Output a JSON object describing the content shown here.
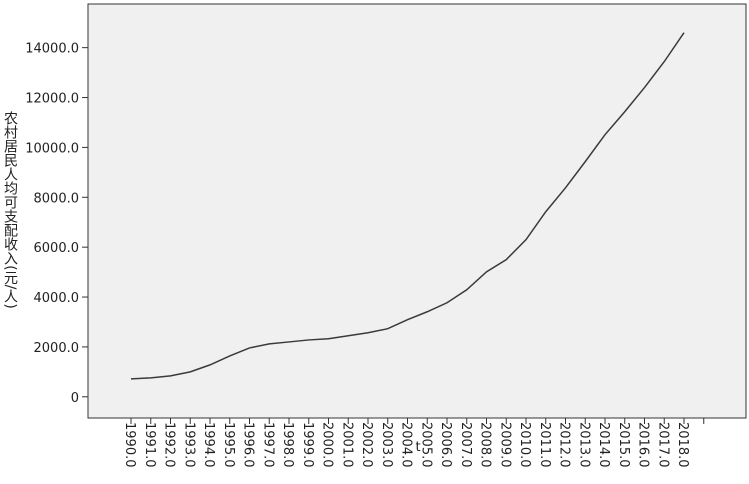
{
  "chart_data": {
    "type": "line",
    "ylabel": "农村居民人均可支配收入(元/人)",
    "xlabel": "t",
    "categories": [
      "1990.0",
      "1991.0",
      "1992.0",
      "1993.0",
      "1994.0",
      "1995.0",
      "1996.0",
      "1997.0",
      "1998.0",
      "1999.0",
      "2000.0",
      "2001.0",
      "2002.0",
      "2003.0",
      "2004.0",
      "2005.0",
      "2006.0",
      "2007.0",
      "2008.0",
      "2009.0",
      "2010.0",
      "2011.0",
      "2012.0",
      "2013.0",
      "2014.0",
      "2015.0",
      "2016.0",
      "2017.0",
      "2018.0",
      null
    ],
    "values": [
      720,
      760,
      840,
      1000,
      1280,
      1640,
      1960,
      2120,
      2200,
      2280,
      2330,
      2450,
      2570,
      2730,
      3090,
      3410,
      3770,
      4290,
      5010,
      5500,
      6300,
      7420,
      8380,
      9430,
      10510,
      11430,
      12400,
      13440,
      14600,
      null
    ],
    "color": "#3a3a3a",
    "ylim": [
      -850,
      15750
    ],
    "yticks": [
      0,
      {
        "value": 2000,
        "label": "2000.0"
      },
      {
        "value": 4000,
        "label": "4000.0"
      },
      {
        "value": 6000,
        "label": "6000.0"
      },
      {
        "value": 8000,
        "label": "8000.0"
      },
      {
        "value": 10000,
        "label": "10000.0"
      },
      {
        "value": 12000,
        "label": "12000.0"
      },
      {
        "value": 14000,
        "label": "14000.0"
      }
    ]
  }
}
